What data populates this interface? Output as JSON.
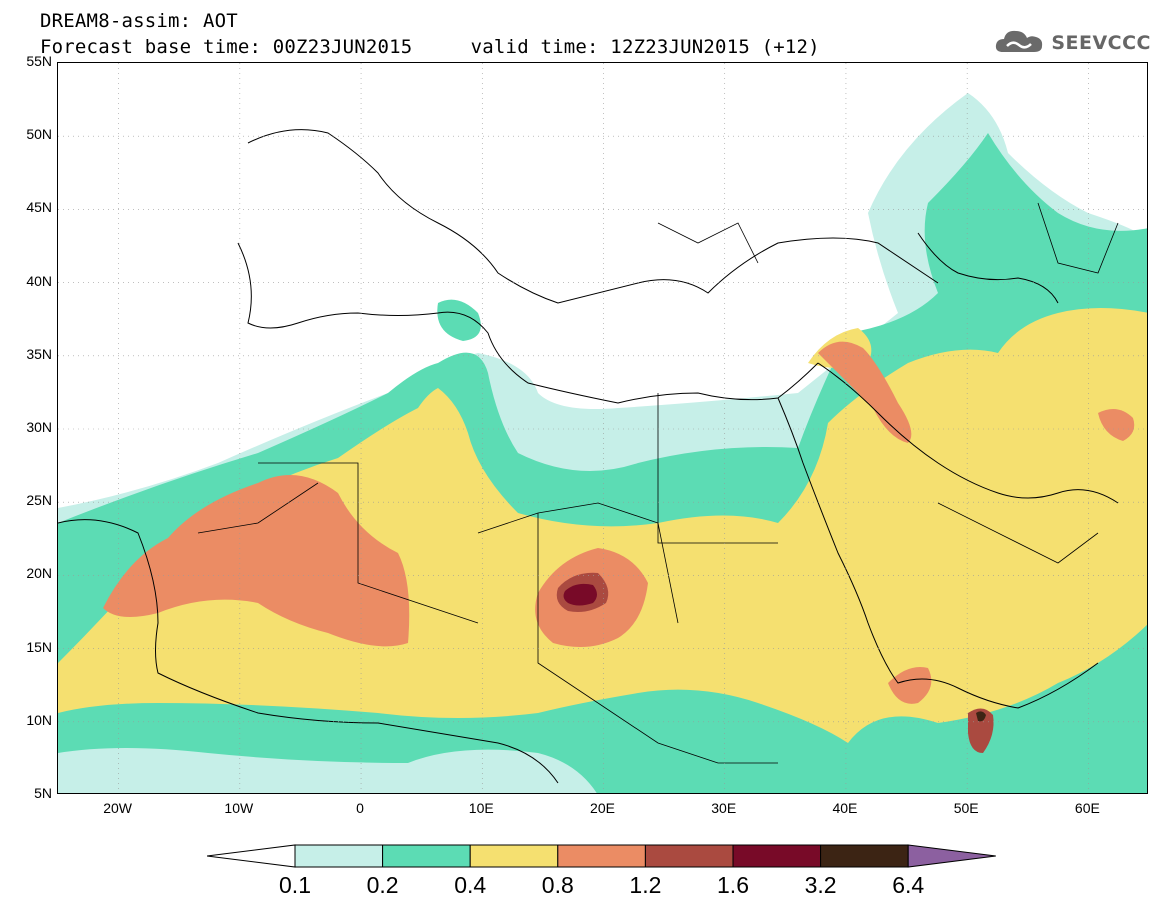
{
  "header": {
    "model_line": "DREAM8-assim: AOT",
    "base_time_line": "Forecast base time: 00Z23JUN2015     valid time: 12Z23JUN2015 (+12)"
  },
  "logo": {
    "text": "SEEVCCC",
    "icon": "cloud-icon",
    "color": "#666666"
  },
  "map": {
    "lat_labels": [
      "55N",
      "50N",
      "45N",
      "40N",
      "35N",
      "30N",
      "25N",
      "20N",
      "15N",
      "10N",
      "5N"
    ],
    "lon_labels": [
      "20W",
      "10W",
      "0",
      "10E",
      "20E",
      "30E",
      "40E",
      "50E",
      "60E"
    ],
    "extent": {
      "lon_min": -25,
      "lon_max": 65,
      "lat_min": 5,
      "lat_max": 55
    }
  },
  "colorbar": {
    "labels": [
      "0.1",
      "0.2",
      "0.4",
      "0.8",
      "1.2",
      "1.6",
      "3.2",
      "6.4"
    ],
    "colors": [
      "#c6efe8",
      "#5cdcb4",
      "#f5e070",
      "#eb8c64",
      "#aa4a40",
      "#780a28",
      "#3c2414",
      "#8c60a0"
    ],
    "under_color": "#ffffff"
  }
}
